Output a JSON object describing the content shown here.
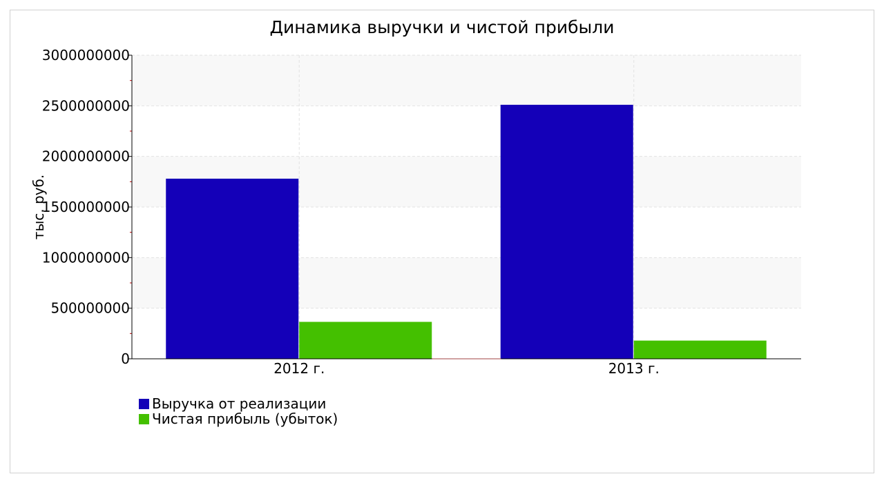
{
  "chart_data": {
    "type": "bar",
    "title": "Динамика выручки и чистой прибыли",
    "ylabel": "тыс. руб.",
    "xlabel": "",
    "categories": [
      "2012 г.",
      "2013 г."
    ],
    "ylim": [
      0,
      3000000000
    ],
    "yticks": [
      0,
      500000000,
      1000000000,
      1500000000,
      2000000000,
      2500000000,
      3000000000
    ],
    "ytick_labels": [
      "0",
      "500000000",
      "1000000000",
      "1500000000",
      "2000000000",
      "2500000000",
      "3000000000"
    ],
    "grid": true,
    "legend_position": "bottom-left",
    "series": [
      {
        "name": "Выручка от реализации",
        "color": "#1400b8",
        "values": [
          1780000000,
          2510000000
        ]
      },
      {
        "name": "Чистая прибыль (убыток)",
        "color": "#44c000",
        "values": [
          365000000,
          180000000
        ]
      }
    ]
  }
}
